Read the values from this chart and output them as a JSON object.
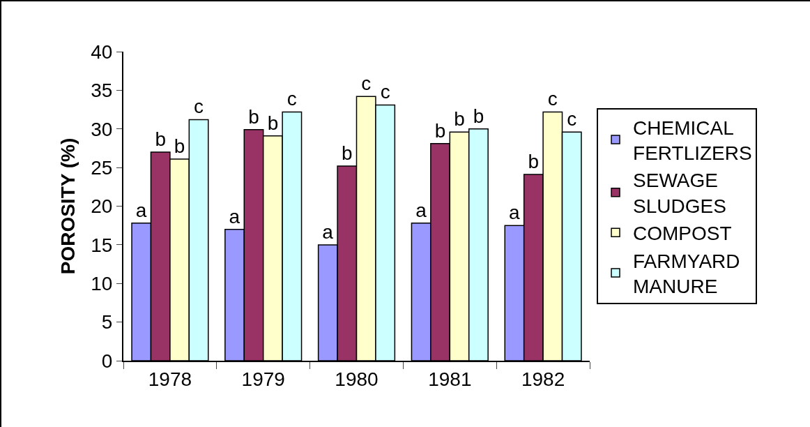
{
  "chart_data": {
    "type": "bar",
    "ylabel": "POROSITY (%)",
    "categories": [
      "1978",
      "1979",
      "1980",
      "1981",
      "1982"
    ],
    "series": [
      {
        "name": "CHEMICAL FERTLIZERS",
        "color": "#9999ff",
        "values": [
          17.8,
          17.0,
          15.0,
          17.8,
          17.5
        ],
        "value_labels": [
          "a",
          "a",
          "a",
          "a",
          "a"
        ]
      },
      {
        "name": "SEWAGE SLUDGES",
        "color": "#993366",
        "values": [
          27.0,
          29.9,
          25.2,
          28.1,
          24.1
        ],
        "value_labels": [
          "b",
          "b",
          "b",
          "b",
          "b"
        ]
      },
      {
        "name": "COMPOST",
        "color": "#ffffcc",
        "values": [
          26.1,
          29.1,
          34.2,
          29.6,
          32.2
        ],
        "value_labels": [
          "b",
          "b",
          "c",
          "b",
          "c"
        ]
      },
      {
        "name": "FARMYARD MANURE",
        "color": "#ccffff",
        "values": [
          31.2,
          32.2,
          33.1,
          30.0,
          29.6
        ],
        "value_labels": [
          "c",
          "c",
          "c",
          "b",
          "c"
        ]
      }
    ],
    "ylim": [
      0,
      40
    ],
    "yticks": [
      0,
      5,
      10,
      15,
      20,
      25,
      30,
      35,
      40
    ],
    "grid": false,
    "legend": "right"
  }
}
